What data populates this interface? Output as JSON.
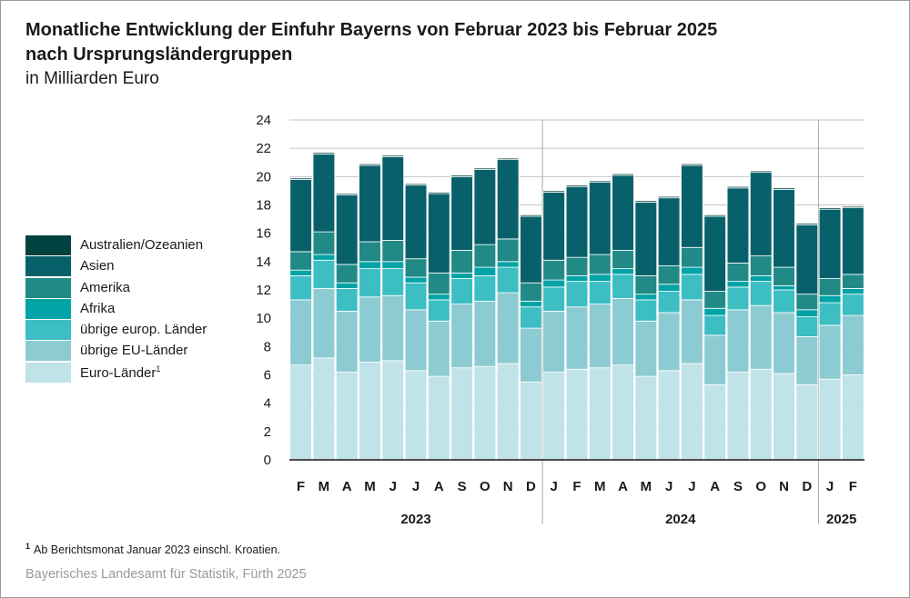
{
  "title_line1": "Monatliche Entwicklung der Einfuhr Bayerns von Februar 2023 bis Februar 2025",
  "title_line2": "nach Ursprungsländergruppen",
  "subtitle": "in Milliarden Euro",
  "footnote_marker": "1",
  "footnote_text": "Ab Berichtsmonat Januar 2023 einschl. Kroatien.",
  "source": "Bayerisches Landesamt für Statistik, Fürth 2025",
  "chart_data": {
    "type": "bar",
    "stacked": true,
    "ylim": [
      0,
      24
    ],
    "yticks": [
      0,
      2,
      4,
      6,
      8,
      10,
      12,
      14,
      16,
      18,
      20,
      22,
      24
    ],
    "grid": true,
    "legend_position": "left",
    "categories": [
      "F",
      "M",
      "A",
      "M",
      "J",
      "J",
      "A",
      "S",
      "O",
      "N",
      "D",
      "J",
      "F",
      "M",
      "A",
      "M",
      "J",
      "J",
      "A",
      "S",
      "O",
      "N",
      "D",
      "J",
      "F"
    ],
    "year_groups": [
      {
        "label": "2023",
        "start": 0,
        "end": 10
      },
      {
        "label": "2024",
        "start": 11,
        "end": 22
      },
      {
        "label": "2025",
        "start": 23,
        "end": 24
      }
    ],
    "series": [
      {
        "name": "Euro-Länder",
        "name_sup": "1",
        "color": "#bfe3e8",
        "values": [
          6.7,
          7.2,
          6.2,
          6.9,
          7.0,
          6.3,
          5.9,
          6.5,
          6.6,
          6.8,
          5.5,
          6.2,
          6.4,
          6.5,
          6.7,
          5.9,
          6.3,
          6.8,
          5.3,
          6.2,
          6.4,
          6.1,
          5.3,
          5.7,
          6.0
        ]
      },
      {
        "name": "übrige EU-Länder",
        "color": "#8dcbd2",
        "values": [
          4.6,
          4.9,
          4.3,
          4.6,
          4.6,
          4.3,
          3.9,
          4.5,
          4.6,
          5.0,
          3.8,
          4.3,
          4.4,
          4.5,
          4.7,
          3.9,
          4.1,
          4.5,
          3.5,
          4.4,
          4.5,
          4.3,
          3.4,
          3.8,
          4.2
        ]
      },
      {
        "name": "übrige europ. Länder",
        "color": "#3dbec3",
        "values": [
          1.7,
          2.0,
          1.6,
          2.0,
          1.9,
          1.9,
          1.5,
          1.8,
          1.8,
          1.8,
          1.5,
          1.7,
          1.8,
          1.6,
          1.7,
          1.5,
          1.5,
          1.8,
          1.4,
          1.6,
          1.7,
          1.6,
          1.4,
          1.6,
          1.5
        ]
      },
      {
        "name": "Afrika",
        "color": "#00a3a6",
        "values": [
          0.4,
          0.4,
          0.4,
          0.5,
          0.5,
          0.4,
          0.4,
          0.4,
          0.6,
          0.4,
          0.4,
          0.5,
          0.4,
          0.5,
          0.4,
          0.4,
          0.5,
          0.5,
          0.5,
          0.4,
          0.4,
          0.3,
          0.5,
          0.5,
          0.4
        ]
      },
      {
        "name": "Amerika",
        "color": "#218a87",
        "values": [
          1.3,
          1.6,
          1.3,
          1.4,
          1.5,
          1.3,
          1.5,
          1.6,
          1.6,
          1.6,
          1.3,
          1.4,
          1.3,
          1.4,
          1.3,
          1.3,
          1.3,
          1.4,
          1.2,
          1.3,
          1.4,
          1.3,
          1.1,
          1.2,
          1.0
        ]
      },
      {
        "name": "Asien",
        "color": "#08616a",
        "values": [
          5.1,
          5.5,
          4.9,
          5.4,
          5.9,
          5.2,
          5.6,
          5.2,
          5.3,
          5.6,
          4.7,
          4.8,
          5.0,
          5.1,
          5.3,
          5.2,
          4.8,
          5.8,
          5.3,
          5.3,
          5.9,
          5.5,
          4.9,
          4.9,
          4.7
        ]
      },
      {
        "name": "Australien/Ozeanien",
        "color": "#00423f",
        "values": [
          0.1,
          0.1,
          0.1,
          0.1,
          0.1,
          0.1,
          0.1,
          0.1,
          0.1,
          0.1,
          0.1,
          0.1,
          0.1,
          0.1,
          0.1,
          0.1,
          0.1,
          0.1,
          0.1,
          0.1,
          0.1,
          0.1,
          0.1,
          0.1,
          0.1
        ]
      }
    ]
  }
}
